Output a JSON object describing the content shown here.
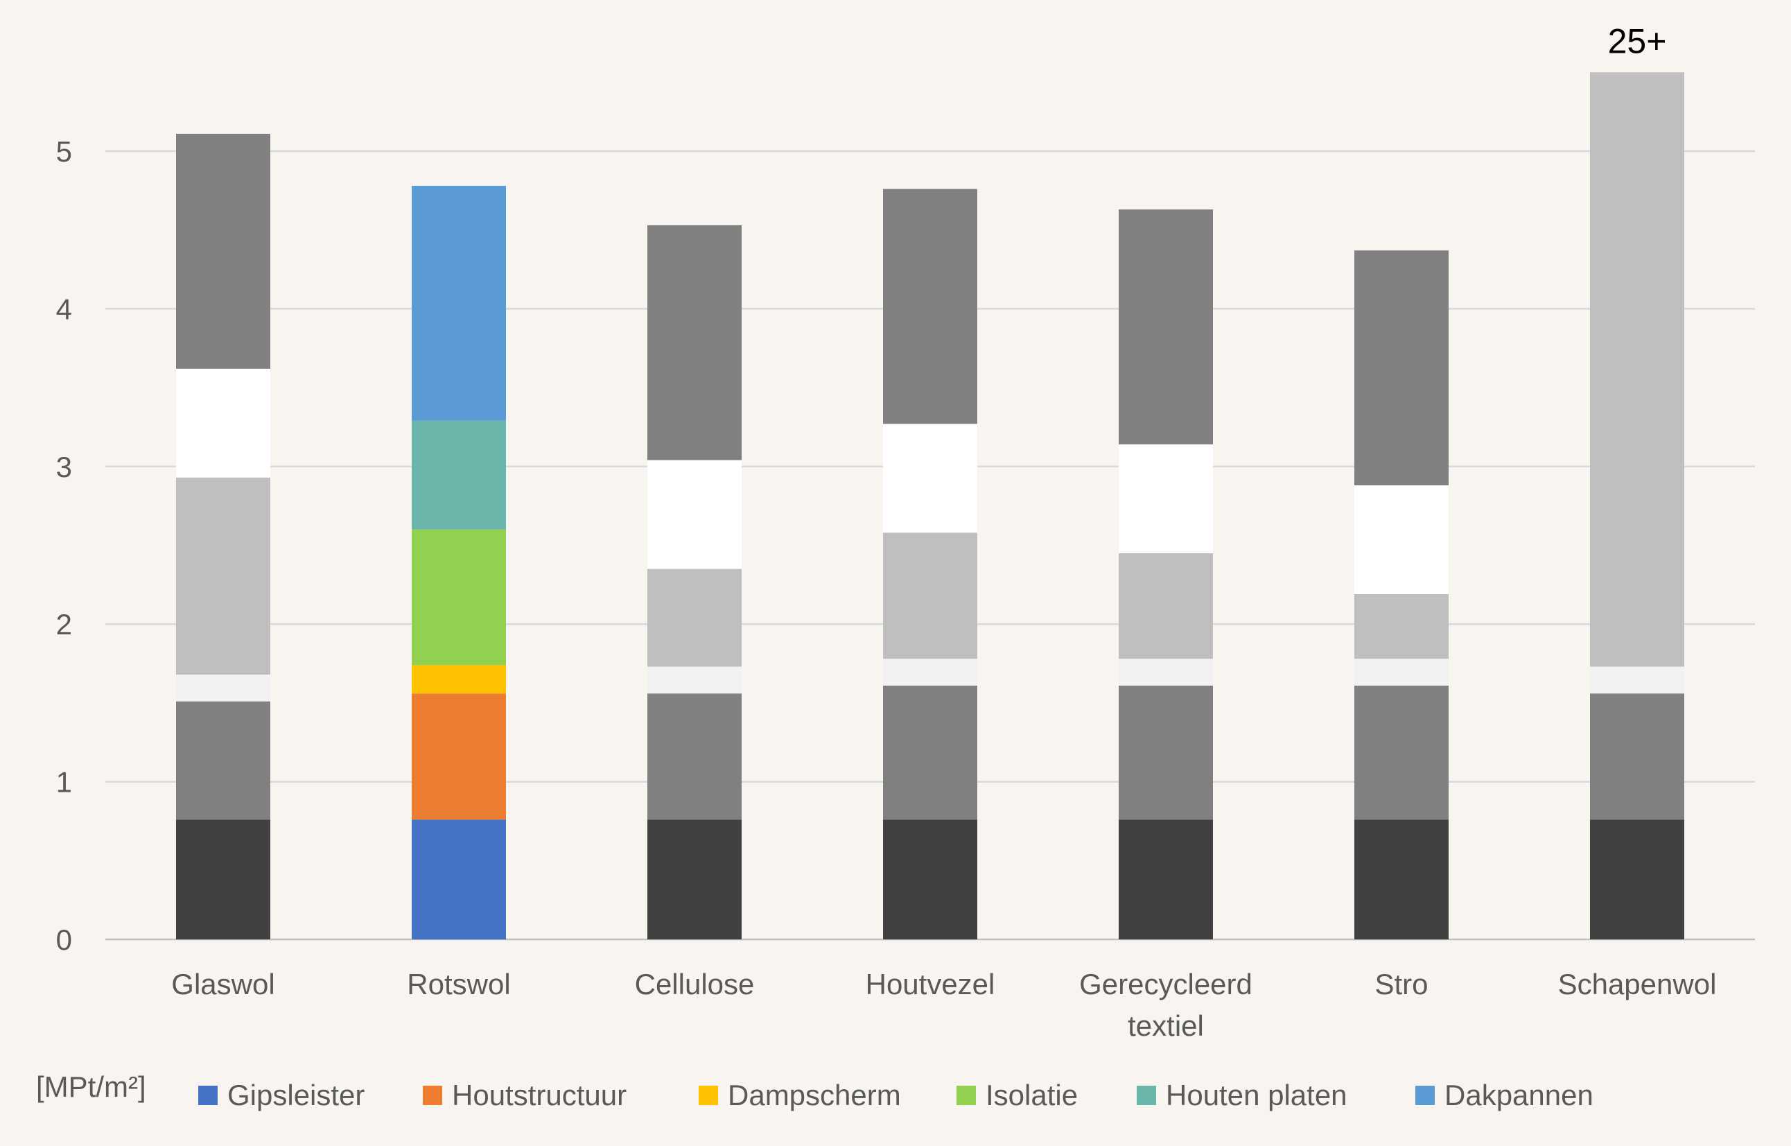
{
  "chart_data": {
    "type": "bar",
    "stacked": true,
    "ylabel": "",
    "ylim": [
      0,
      5.5
    ],
    "yticks": [
      "0",
      "1",
      "2",
      "3",
      "4",
      "5"
    ],
    "grid": true,
    "legend_placement": "bottom",
    "legend_prefix": "[MPt/m²]",
    "categories": [
      [
        "Glaswol"
      ],
      [
        "Rotswol"
      ],
      [
        "Cellulose"
      ],
      [
        "Houtvezel"
      ],
      [
        "Gerecycleerd",
        "textiel"
      ],
      [
        "Stro"
      ],
      [
        "Schapenwol"
      ]
    ],
    "legend": [
      {
        "name": "Gipsleister",
        "color": "#4472c4"
      },
      {
        "name": "Houtstructuur",
        "color": "#ed7d31"
      },
      {
        "name": "Dampscherm",
        "color": "#ffc000"
      },
      {
        "name": "Isolatie",
        "color": "#92d050"
      },
      {
        "name": "Houten platen",
        "color": "#6bb6aa"
      },
      {
        "name": "Dakpannen",
        "color": "#5b9bd5"
      }
    ],
    "greyscale_colors": [
      "#404040",
      "#808080",
      "#f2f2f2",
      "#bfbfbf",
      "#ffffff",
      "#808080"
    ],
    "highlighted_category_index": 1,
    "values": [
      [
        0.76,
        0.75,
        0.17,
        1.25,
        0.69,
        1.49
      ],
      [
        0.76,
        0.8,
        0.18,
        0.86,
        0.69,
        1.49
      ],
      [
        0.76,
        0.8,
        0.17,
        0.62,
        0.69,
        1.49
      ],
      [
        0.76,
        0.85,
        0.17,
        0.8,
        0.69,
        1.49
      ],
      [
        0.76,
        0.85,
        0.17,
        0.67,
        0.69,
        1.49
      ],
      [
        0.76,
        0.85,
        0.17,
        0.41,
        0.69,
        1.49
      ],
      [
        0.76,
        0.8,
        0.17,
        3.77,
        0,
        0
      ]
    ],
    "annotations": [
      {
        "category_index": 6,
        "text": "25+"
      }
    ]
  }
}
